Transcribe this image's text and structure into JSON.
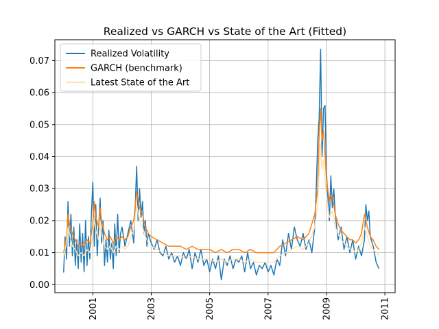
{
  "chart_data": {
    "type": "line",
    "title": "Realized vs GARCH vs State of the Art (Fitted)",
    "xlabel": "",
    "ylabel": "",
    "x_ticks": [
      "2001",
      "2003",
      "2005",
      "2007",
      "2009",
      "2011"
    ],
    "y_ticks": [
      "0.00",
      "0.01",
      "0.02",
      "0.03",
      "0.04",
      "0.05",
      "0.06",
      "0.07"
    ],
    "xlim": [
      1999.7,
      2011.35
    ],
    "ylim": [
      -0.0025,
      0.0765
    ],
    "x_tick_rotation": 90,
    "grid": true,
    "legend_position": "upper-left",
    "colors": {
      "realized": "#1f77b4",
      "garch": "#ff7f0e",
      "sota": "#ffe0b2",
      "grid": "#b0b0b0",
      "axes": "#000000",
      "background": "#ffffff"
    },
    "series": [
      {
        "name": "Realized Volatility",
        "x": [
          2000.0,
          2000.05,
          2000.1,
          2000.15,
          2000.2,
          2000.25,
          2000.3,
          2000.35,
          2000.4,
          2000.45,
          2000.5,
          2000.55,
          2000.6,
          2000.65,
          2000.7,
          2000.75,
          2000.8,
          2000.85,
          2000.9,
          2000.95,
          2001.0,
          2001.05,
          2001.1,
          2001.15,
          2001.2,
          2001.25,
          2001.3,
          2001.35,
          2001.4,
          2001.45,
          2001.5,
          2001.55,
          2001.6,
          2001.65,
          2001.7,
          2001.75,
          2001.8,
          2001.85,
          2001.9,
          2001.95,
          2002.0,
          2002.1,
          2002.2,
          2002.3,
          2002.4,
          2002.45,
          2002.5,
          2002.55,
          2002.6,
          2002.65,
          2002.7,
          2002.75,
          2002.8,
          2002.85,
          2002.9,
          2003.0,
          2003.1,
          2003.2,
          2003.3,
          2003.4,
          2003.5,
          2003.6,
          2003.7,
          2003.8,
          2003.9,
          2004.0,
          2004.1,
          2004.2,
          2004.3,
          2004.4,
          2004.5,
          2004.6,
          2004.7,
          2004.8,
          2004.9,
          2005.0,
          2005.1,
          2005.2,
          2005.3,
          2005.4,
          2005.5,
          2005.6,
          2005.7,
          2005.8,
          2005.9,
          2006.0,
          2006.1,
          2006.2,
          2006.3,
          2006.4,
          2006.5,
          2006.6,
          2006.7,
          2006.8,
          2006.9,
          2007.0,
          2007.1,
          2007.2,
          2007.3,
          2007.4,
          2007.5,
          2007.6,
          2007.7,
          2007.8,
          2007.9,
          2008.0,
          2008.1,
          2008.2,
          2008.3,
          2008.4,
          2008.5,
          2008.6,
          2008.65,
          2008.7,
          2008.75,
          2008.8,
          2008.85,
          2008.9,
          2008.95,
          2009.0,
          2009.05,
          2009.1,
          2009.15,
          2009.2,
          2009.25,
          2009.3,
          2009.4,
          2009.5,
          2009.6,
          2009.7,
          2009.8,
          2009.9,
          2010.0,
          2010.1,
          2010.2,
          2010.3,
          2010.35,
          2010.4,
          2010.45,
          2010.5,
          2010.6,
          2010.7,
          2010.8
        ],
        "y": [
          0.0038,
          0.015,
          0.008,
          0.026,
          0.012,
          0.022,
          0.009,
          0.018,
          0.006,
          0.014,
          0.005,
          0.019,
          0.007,
          0.016,
          0.004,
          0.02,
          0.006,
          0.015,
          0.008,
          0.022,
          0.032,
          0.012,
          0.025,
          0.009,
          0.018,
          0.027,
          0.013,
          0.02,
          0.006,
          0.014,
          0.007,
          0.017,
          0.008,
          0.013,
          0.005,
          0.019,
          0.009,
          0.022,
          0.01,
          0.016,
          0.018,
          0.012,
          0.016,
          0.02,
          0.013,
          0.024,
          0.037,
          0.02,
          0.03,
          0.021,
          0.026,
          0.016,
          0.02,
          0.012,
          0.016,
          0.013,
          0.011,
          0.014,
          0.01,
          0.009,
          0.012,
          0.008,
          0.01,
          0.007,
          0.009,
          0.006,
          0.01,
          0.008,
          0.011,
          0.005,
          0.01,
          0.007,
          0.011,
          0.006,
          0.008,
          0.004,
          0.008,
          0.005,
          0.009,
          0.0015,
          0.008,
          0.006,
          0.009,
          0.005,
          0.008,
          0.007,
          0.009,
          0.004,
          0.01,
          0.005,
          0.007,
          0.003,
          0.006,
          0.005,
          0.007,
          0.004,
          0.006,
          0.003,
          0.008,
          0.006,
          0.014,
          0.009,
          0.016,
          0.011,
          0.018,
          0.014,
          0.012,
          0.016,
          0.011,
          0.014,
          0.01,
          0.018,
          0.03,
          0.045,
          0.052,
          0.0735,
          0.04,
          0.055,
          0.056,
          0.035,
          0.027,
          0.02,
          0.034,
          0.024,
          0.03,
          0.022,
          0.014,
          0.018,
          0.011,
          0.015,
          0.01,
          0.014,
          0.008,
          0.012,
          0.009,
          0.014,
          0.025,
          0.02,
          0.023,
          0.015,
          0.012,
          0.007,
          0.005
        ]
      },
      {
        "name": "GARCH (benchmark)",
        "x": [
          2000.0,
          2000.1,
          2000.15,
          2000.2,
          2000.3,
          2000.4,
          2000.5,
          2000.6,
          2000.7,
          2000.8,
          2000.9,
          2001.0,
          2001.05,
          2001.1,
          2001.2,
          2001.25,
          2001.3,
          2001.4,
          2001.5,
          2001.6,
          2001.7,
          2001.8,
          2001.9,
          2002.0,
          2002.1,
          2002.2,
          2002.3,
          2002.4,
          2002.5,
          2002.6,
          2002.7,
          2002.8,
          2002.9,
          2003.0,
          2003.2,
          2003.4,
          2003.6,
          2003.8,
          2004.0,
          2004.2,
          2004.4,
          2004.6,
          2004.8,
          2005.0,
          2005.2,
          2005.4,
          2005.6,
          2005.8,
          2006.0,
          2006.2,
          2006.4,
          2006.6,
          2006.8,
          2007.0,
          2007.2,
          2007.4,
          2007.6,
          2007.8,
          2008.0,
          2008.2,
          2008.4,
          2008.6,
          2008.7,
          2008.75,
          2008.8,
          2008.85,
          2008.9,
          2009.0,
          2009.1,
          2009.2,
          2009.3,
          2009.4,
          2009.5,
          2009.6,
          2009.7,
          2009.8,
          2009.9,
          2010.0,
          2010.1,
          2010.2,
          2010.3,
          2010.4,
          2010.5,
          2010.6,
          2010.7,
          2010.8
        ],
        "y": [
          0.01,
          0.015,
          0.022,
          0.019,
          0.016,
          0.014,
          0.012,
          0.013,
          0.012,
          0.014,
          0.013,
          0.019,
          0.026,
          0.021,
          0.018,
          0.024,
          0.02,
          0.016,
          0.014,
          0.015,
          0.013,
          0.015,
          0.014,
          0.015,
          0.014,
          0.015,
          0.018,
          0.02,
          0.029,
          0.024,
          0.022,
          0.018,
          0.016,
          0.015,
          0.014,
          0.013,
          0.012,
          0.012,
          0.012,
          0.011,
          0.012,
          0.011,
          0.011,
          0.011,
          0.01,
          0.011,
          0.01,
          0.011,
          0.011,
          0.01,
          0.011,
          0.01,
          0.01,
          0.01,
          0.01,
          0.012,
          0.013,
          0.014,
          0.015,
          0.014,
          0.016,
          0.022,
          0.03,
          0.047,
          0.055,
          0.045,
          0.048,
          0.033,
          0.026,
          0.028,
          0.022,
          0.019,
          0.017,
          0.016,
          0.015,
          0.014,
          0.014,
          0.013,
          0.014,
          0.016,
          0.022,
          0.018,
          0.015,
          0.014,
          0.012,
          0.011
        ]
      },
      {
        "name": "Latest State of the Art",
        "x": [
          2000.0,
          2000.1,
          2000.15,
          2000.2,
          2000.3,
          2000.4,
          2000.5,
          2000.6,
          2000.7,
          2000.8,
          2000.9,
          2001.0,
          2001.05,
          2001.1,
          2001.2,
          2001.25,
          2001.3,
          2001.4,
          2001.5,
          2001.6,
          2001.7,
          2001.8,
          2001.9,
          2002.0,
          2002.1,
          2002.2,
          2002.3,
          2002.4,
          2002.5,
          2002.6,
          2002.7,
          2002.8,
          2002.9,
          2003.0,
          2003.2,
          2003.4,
          2003.6,
          2003.8,
          2004.0,
          2004.2,
          2004.4,
          2004.6,
          2004.8,
          2005.0,
          2005.2,
          2005.4,
          2005.6,
          2005.8,
          2006.0,
          2006.2,
          2006.4,
          2006.6,
          2006.8,
          2007.0,
          2007.2,
          2007.4,
          2007.6,
          2007.8,
          2008.0,
          2008.2,
          2008.4,
          2008.6,
          2008.7,
          2008.75,
          2008.8,
          2008.85,
          2008.9,
          2009.0,
          2009.1,
          2009.2,
          2009.3,
          2009.4,
          2009.5,
          2009.6,
          2009.7,
          2009.8,
          2009.9,
          2010.0,
          2010.1,
          2010.2,
          2010.3,
          2010.4,
          2010.5,
          2010.6,
          2010.7,
          2010.8
        ],
        "y": [
          0.009,
          0.013,
          0.018,
          0.016,
          0.012,
          0.011,
          0.009,
          0.01,
          0.009,
          0.011,
          0.01,
          0.016,
          0.021,
          0.017,
          0.014,
          0.02,
          0.016,
          0.012,
          0.011,
          0.012,
          0.01,
          0.012,
          0.011,
          0.012,
          0.011,
          0.012,
          0.015,
          0.017,
          0.025,
          0.02,
          0.018,
          0.015,
          0.013,
          0.012,
          0.011,
          0.01,
          0.009,
          0.009,
          0.009,
          0.008,
          0.009,
          0.008,
          0.008,
          0.008,
          0.007,
          0.008,
          0.007,
          0.008,
          0.008,
          0.007,
          0.008,
          0.007,
          0.007,
          0.007,
          0.007,
          0.009,
          0.01,
          0.011,
          0.012,
          0.011,
          0.013,
          0.018,
          0.025,
          0.035,
          0.044,
          0.036,
          0.039,
          0.027,
          0.021,
          0.023,
          0.018,
          0.016,
          0.014,
          0.013,
          0.012,
          0.011,
          0.011,
          0.01,
          0.011,
          0.013,
          0.018,
          0.015,
          0.012,
          0.011,
          0.01,
          0.009
        ]
      }
    ]
  }
}
